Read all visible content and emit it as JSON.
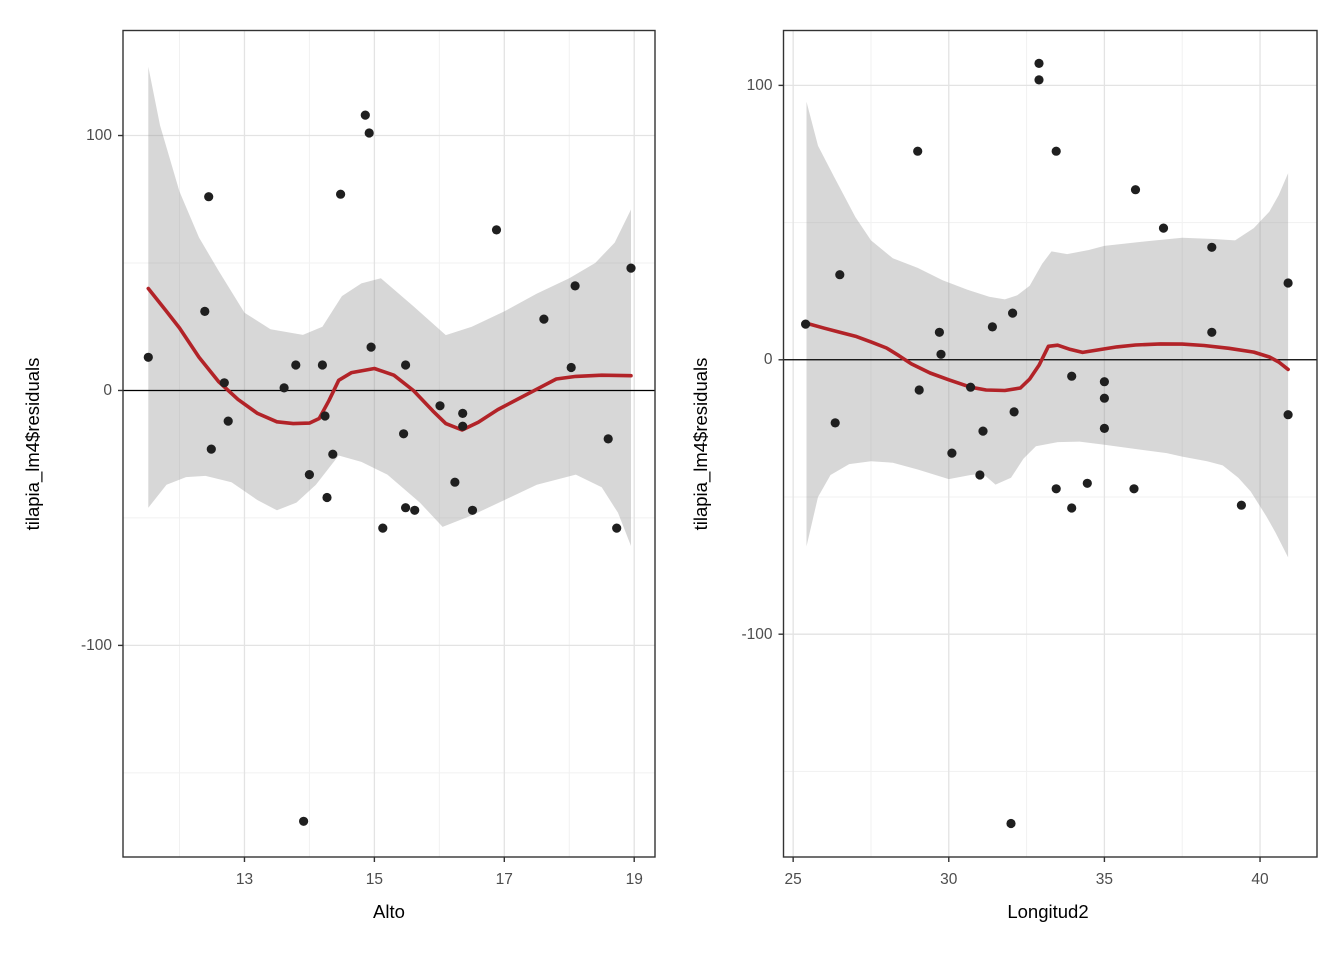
{
  "figure": {
    "colors": {
      "background": "#ffffff",
      "panel_background": "#ffffff",
      "panel_border": "#333333",
      "grid_major": "#e3e3e3",
      "grid_minor": "#f1f1f1",
      "smooth_line": "#b22328",
      "ribbon": "rgba(150,150,150,0.38)",
      "point": "#1f1f1f",
      "zero_line": "#000000",
      "tick_label": "#4d4d4d",
      "axis_title": "#000000"
    }
  },
  "chart_data": [
    {
      "type": "scatter",
      "title": "",
      "xlabel": "Alto",
      "ylabel": "tilapia_lm4$residuals",
      "xlim": [
        11.13,
        19.32
      ],
      "ylim": [
        -183,
        141.2
      ],
      "x_ticks": [
        13,
        15,
        17,
        19
      ],
      "y_ticks": [
        100,
        0,
        -100
      ],
      "x_minor_ticks": [
        12,
        14,
        16,
        18
      ],
      "y_minor_ticks": [
        50,
        -50,
        -150
      ],
      "grid": true,
      "legend": "none",
      "zero_line": 0,
      "points": [
        [
          11.52,
          13
        ],
        [
          12.39,
          31
        ],
        [
          12.45,
          76
        ],
        [
          12.69,
          3
        ],
        [
          12.75,
          -12
        ],
        [
          12.49,
          -23
        ],
        [
          13.61,
          1
        ],
        [
          13.79,
          10
        ],
        [
          13.91,
          -169
        ],
        [
          14.0,
          -33
        ],
        [
          14.2,
          10
        ],
        [
          14.24,
          -10
        ],
        [
          14.27,
          -42
        ],
        [
          14.36,
          -25
        ],
        [
          14.48,
          77
        ],
        [
          14.86,
          108
        ],
        [
          14.92,
          101
        ],
        [
          14.95,
          17
        ],
        [
          15.13,
          -54
        ],
        [
          15.45,
          -17
        ],
        [
          15.48,
          10
        ],
        [
          15.48,
          -46
        ],
        [
          15.62,
          -47
        ],
        [
          16.01,
          -6
        ],
        [
          16.24,
          -36
        ],
        [
          16.36,
          -9
        ],
        [
          16.36,
          -14
        ],
        [
          16.51,
          -47
        ],
        [
          16.88,
          63
        ],
        [
          17.61,
          28
        ],
        [
          18.03,
          9
        ],
        [
          18.09,
          41
        ],
        [
          18.6,
          -19
        ],
        [
          18.73,
          -54
        ],
        [
          18.95,
          48
        ]
      ],
      "smooth_line": [
        [
          11.52,
          40
        ],
        [
          11.8,
          31
        ],
        [
          12.0,
          24.5
        ],
        [
          12.3,
          13
        ],
        [
          12.6,
          3.5
        ],
        [
          12.9,
          -3.5
        ],
        [
          13.2,
          -9
        ],
        [
          13.5,
          -12.3
        ],
        [
          13.75,
          -13
        ],
        [
          14.0,
          -12.8
        ],
        [
          14.15,
          -11
        ],
        [
          14.3,
          -4
        ],
        [
          14.45,
          4
        ],
        [
          14.65,
          7
        ],
        [
          15.0,
          8.6
        ],
        [
          15.3,
          6
        ],
        [
          15.6,
          0
        ],
        [
          15.9,
          -8
        ],
        [
          16.1,
          -13
        ],
        [
          16.35,
          -15.5
        ],
        [
          16.6,
          -12.5
        ],
        [
          16.9,
          -7.5
        ],
        [
          17.2,
          -3.5
        ],
        [
          17.5,
          0.5
        ],
        [
          17.8,
          4.5
        ],
        [
          18.1,
          5.5
        ],
        [
          18.5,
          6
        ],
        [
          18.95,
          5.8
        ]
      ],
      "ribbon_upper": [
        [
          11.52,
          127
        ],
        [
          11.7,
          104
        ],
        [
          12.0,
          78
        ],
        [
          12.3,
          60
        ],
        [
          12.6,
          47
        ],
        [
          13.0,
          30.5
        ],
        [
          13.4,
          24
        ],
        [
          13.9,
          21.8
        ],
        [
          14.2,
          25
        ],
        [
          14.5,
          37
        ],
        [
          14.8,
          42
        ],
        [
          15.1,
          44
        ],
        [
          15.6,
          33
        ],
        [
          16.1,
          21.7
        ],
        [
          16.5,
          25
        ],
        [
          17.0,
          31
        ],
        [
          17.5,
          38
        ],
        [
          18.0,
          44
        ],
        [
          18.4,
          50
        ],
        [
          18.7,
          58
        ],
        [
          18.95,
          71
        ]
      ],
      "ribbon_lower": [
        [
          11.52,
          -46
        ],
        [
          11.8,
          -37
        ],
        [
          12.1,
          -34
        ],
        [
          12.4,
          -33.5
        ],
        [
          12.8,
          -36
        ],
        [
          13.2,
          -43
        ],
        [
          13.5,
          -47
        ],
        [
          13.8,
          -44
        ],
        [
          14.1,
          -37
        ],
        [
          14.45,
          -25.5
        ],
        [
          14.8,
          -28
        ],
        [
          15.2,
          -33
        ],
        [
          15.7,
          -44
        ],
        [
          16.05,
          -53.5
        ],
        [
          16.5,
          -49
        ],
        [
          17.0,
          -43
        ],
        [
          17.5,
          -37
        ],
        [
          18.1,
          -33
        ],
        [
          18.5,
          -38
        ],
        [
          18.75,
          -48
        ],
        [
          18.95,
          -61
        ]
      ]
    },
    {
      "type": "scatter",
      "title": "",
      "xlabel": "Longitud2",
      "ylabel": "tilapia_lm4$residuals",
      "xlim": [
        24.69,
        41.83
      ],
      "ylim": [
        -181.2,
        120.0
      ],
      "x_ticks": [
        25,
        30,
        35,
        40
      ],
      "y_ticks": [
        100,
        0,
        -100
      ],
      "x_minor_ticks": [
        27.5,
        32.5,
        37.5
      ],
      "y_minor_ticks": [
        50,
        -50,
        -150
      ],
      "grid": true,
      "legend": "none",
      "zero_line": 0,
      "points": [
        [
          25.4,
          13
        ],
        [
          26.35,
          -23
        ],
        [
          26.5,
          31
        ],
        [
          29.0,
          76
        ],
        [
          29.05,
          -11
        ],
        [
          29.7,
          10
        ],
        [
          29.75,
          2
        ],
        [
          30.1,
          -34
        ],
        [
          30.7,
          -10
        ],
        [
          31.0,
          -42
        ],
        [
          31.1,
          -26
        ],
        [
          31.4,
          12
        ],
        [
          32.0,
          -169
        ],
        [
          32.05,
          17
        ],
        [
          32.1,
          -19
        ],
        [
          32.9,
          108
        ],
        [
          32.9,
          102
        ],
        [
          33.45,
          76
        ],
        [
          33.45,
          -47
        ],
        [
          33.95,
          -6
        ],
        [
          33.95,
          -54
        ],
        [
          34.45,
          -45
        ],
        [
          35.0,
          -8
        ],
        [
          35.0,
          -14
        ],
        [
          35.0,
          -25
        ],
        [
          35.95,
          -47
        ],
        [
          36.0,
          62
        ],
        [
          36.9,
          48
        ],
        [
          38.45,
          41
        ],
        [
          38.45,
          10
        ],
        [
          39.4,
          -53
        ],
        [
          40.9,
          28
        ],
        [
          40.9,
          -20
        ]
      ],
      "smooth_line": [
        [
          25.4,
          13.4
        ],
        [
          26.0,
          11.5
        ],
        [
          26.5,
          10
        ],
        [
          27.0,
          8.6
        ],
        [
          27.5,
          6.5
        ],
        [
          28.0,
          4.3
        ],
        [
          28.4,
          1.5
        ],
        [
          28.8,
          -1.5
        ],
        [
          29.4,
          -4.8
        ],
        [
          30.0,
          -7.3
        ],
        [
          30.7,
          -10
        ],
        [
          31.2,
          -11
        ],
        [
          31.8,
          -11.2
        ],
        [
          32.3,
          -10.3
        ],
        [
          32.6,
          -7
        ],
        [
          32.9,
          -2
        ],
        [
          33.2,
          4.9
        ],
        [
          33.5,
          5.3
        ],
        [
          33.9,
          3.8
        ],
        [
          34.3,
          2.7
        ],
        [
          34.8,
          3.6
        ],
        [
          35.4,
          4.7
        ],
        [
          36.0,
          5.4
        ],
        [
          36.8,
          5.8
        ],
        [
          37.5,
          5.7
        ],
        [
          38.2,
          5.2
        ],
        [
          39.0,
          4.2
        ],
        [
          39.8,
          2.8
        ],
        [
          40.3,
          1
        ],
        [
          40.6,
          -0.8
        ],
        [
          40.9,
          -3.5
        ]
      ],
      "ribbon_upper": [
        [
          25.43,
          94
        ],
        [
          25.8,
          78
        ],
        [
          26.3,
          67
        ],
        [
          27.0,
          52
        ],
        [
          27.5,
          43.5
        ],
        [
          28.2,
          37
        ],
        [
          29.0,
          33.5
        ],
        [
          29.8,
          29
        ],
        [
          30.6,
          25.5
        ],
        [
          31.3,
          23
        ],
        [
          31.8,
          22
        ],
        [
          32.2,
          23.5
        ],
        [
          32.6,
          27
        ],
        [
          33.0,
          35
        ],
        [
          33.3,
          39.5
        ],
        [
          33.8,
          38.5
        ],
        [
          34.5,
          40
        ],
        [
          35.0,
          41.5
        ],
        [
          36.2,
          43
        ],
        [
          37.5,
          44.5
        ],
        [
          38.5,
          44
        ],
        [
          39.2,
          43.5
        ],
        [
          39.8,
          48
        ],
        [
          40.3,
          54
        ],
        [
          40.6,
          60
        ],
        [
          40.9,
          68
        ]
      ],
      "ribbon_lower": [
        [
          25.43,
          -68
        ],
        [
          25.8,
          -50
        ],
        [
          26.2,
          -42
        ],
        [
          26.8,
          -38
        ],
        [
          27.5,
          -37
        ],
        [
          28.2,
          -37.5
        ],
        [
          29.0,
          -40
        ],
        [
          30.0,
          -43.5
        ],
        [
          30.7,
          -42
        ],
        [
          31.1,
          -41.5
        ],
        [
          31.5,
          -45.5
        ],
        [
          32.0,
          -43
        ],
        [
          32.4,
          -36
        ],
        [
          32.8,
          -31.5
        ],
        [
          33.5,
          -30
        ],
        [
          34.2,
          -29.8
        ],
        [
          35.0,
          -31
        ],
        [
          36.0,
          -32.5
        ],
        [
          37.0,
          -34
        ],
        [
          37.5,
          -35.3
        ],
        [
          38.3,
          -37
        ],
        [
          38.8,
          -38.5
        ],
        [
          39.3,
          -43
        ],
        [
          39.7,
          -48
        ],
        [
          40.2,
          -57
        ],
        [
          40.5,
          -63
        ],
        [
          40.9,
          -72
        ]
      ]
    }
  ]
}
